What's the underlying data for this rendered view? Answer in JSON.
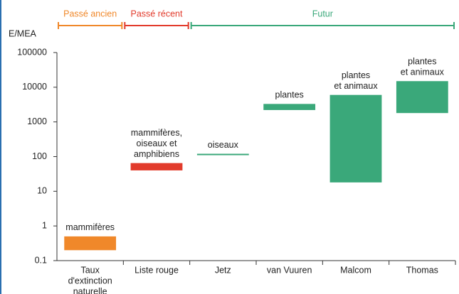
{
  "chart_data": {
    "type": "floating-bar",
    "ylabel": "E/MEA",
    "log_scale": true,
    "ylim": [
      0.1,
      100000
    ],
    "yticks": [
      0.1,
      1,
      10,
      100,
      1000,
      10000,
      100000
    ],
    "categories": [
      [
        "Taux",
        "d'extinction",
        "naturelle"
      ],
      [
        "Liste rouge"
      ],
      [
        "Jetz"
      ],
      [
        "van Vuuren"
      ],
      [
        "Malcom"
      ],
      [
        "Thomas"
      ]
    ],
    "low": [
      0.2,
      40,
      115,
      2200,
      18,
      1800
    ],
    "high": [
      0.5,
      65,
      115,
      3300,
      6000,
      15000
    ],
    "colors": [
      "#f0882a",
      "#e23b2c",
      "#3aa87a",
      "#3aa87a",
      "#3aa87a",
      "#3aa87a"
    ],
    "annotations": [
      [
        "mammifères"
      ],
      [
        "mammifères,",
        "oiseaux et",
        "amphibiens"
      ],
      [
        "oiseaux"
      ],
      [
        "plantes"
      ],
      [
        "plantes",
        "et animaux"
      ],
      [
        "plantes",
        "et animaux"
      ]
    ],
    "periods": [
      {
        "label": "Passé ancien",
        "color": "#f0882a"
      },
      {
        "label": "Passé récent",
        "color": "#e23b2c"
      },
      {
        "label": "Futur",
        "color": "#3aa87a"
      }
    ]
  }
}
